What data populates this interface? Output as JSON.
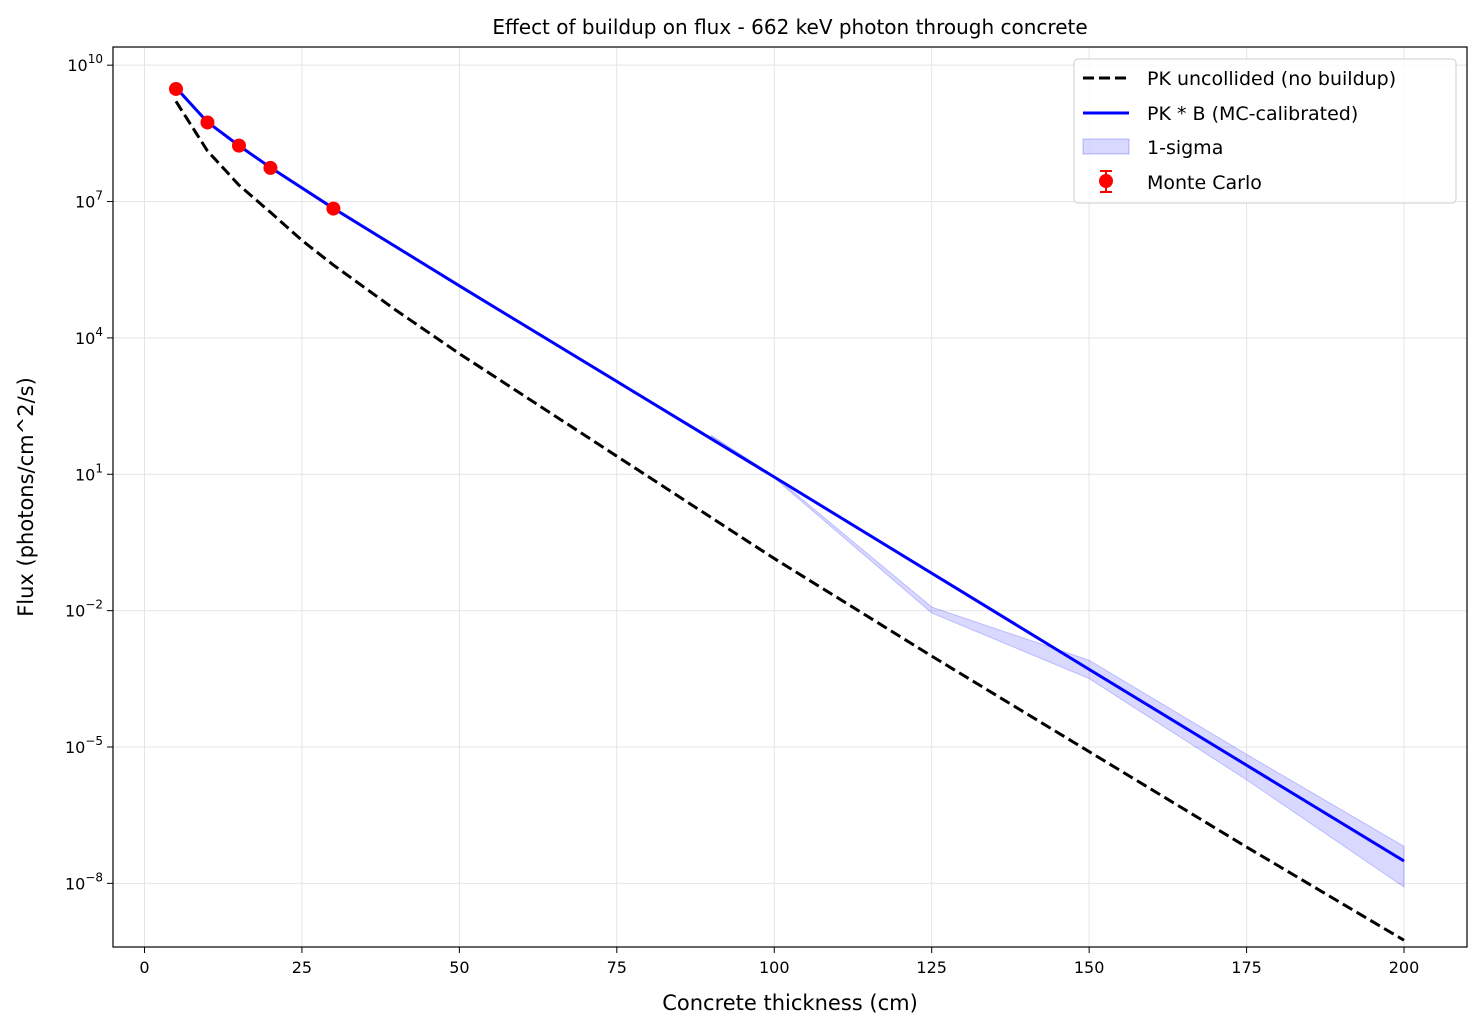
{
  "chart_data": {
    "type": "line",
    "title": "Effect of buildup on flux - 662 keV photon through concrete",
    "xlabel": "Concrete thickness (cm)",
    "ylabel": "Flux (photons/cm^2/s)",
    "xlim": [
      -5,
      210
    ],
    "ylim_log10": [
      -9.4,
      10.4
    ],
    "yscale": "log",
    "grid": true,
    "legend_position": "top-right",
    "xticks": [
      0,
      25,
      50,
      75,
      100,
      125,
      150,
      175,
      200
    ],
    "yticks_exponents": [
      -8,
      -5,
      -2,
      1,
      4,
      7,
      10
    ],
    "ytick_base": "10",
    "series": [
      {
        "name": "PK uncollided (no buildup)",
        "style": "dashed",
        "color": "#000000",
        "x": [
          5,
          10,
          15,
          20,
          25,
          30,
          40,
          50,
          75,
          100,
          125,
          150,
          175,
          200
        ],
        "y": [
          1600000000.0,
          130000000.0,
          23000000.0,
          5800000.0,
          1400000.0,
          400000.0,
          40000.0,
          4500.0,
          25,
          0.14,
          0.001,
          7.9e-06,
          6.3e-08,
          5.6e-10
        ]
      },
      {
        "name": "PK * B (MC-calibrated)",
        "style": "solid",
        "color": "#0000ff",
        "x": [
          5,
          10,
          15,
          20,
          30,
          50,
          100,
          150,
          200
        ],
        "y": [
          3200000000.0,
          560000000.0,
          170000000.0,
          56000000.0,
          7100000.0,
          140000.0,
          8.7,
          0.00051,
          3.1e-08
        ]
      },
      {
        "name": "1-sigma",
        "type": "band",
        "color": "#0000ff",
        "x": [
          90,
          100,
          125,
          150,
          175,
          200
        ],
        "upper": [
          72,
          9.1,
          0.012,
          0.00081,
          6.9e-06,
          6.5e-08
        ],
        "lower": [
          68,
          8.3,
          0.0089,
          0.00032,
          1.9e-06,
          8.3e-09
        ]
      },
      {
        "name": "Monte Carlo",
        "type": "errorbar",
        "color": "#ff0000",
        "x": [
          5,
          10,
          15,
          20,
          30
        ],
        "y": [
          3000000000.0,
          550000000.0,
          170000000.0,
          55000000.0,
          7000000.0
        ]
      }
    ]
  }
}
